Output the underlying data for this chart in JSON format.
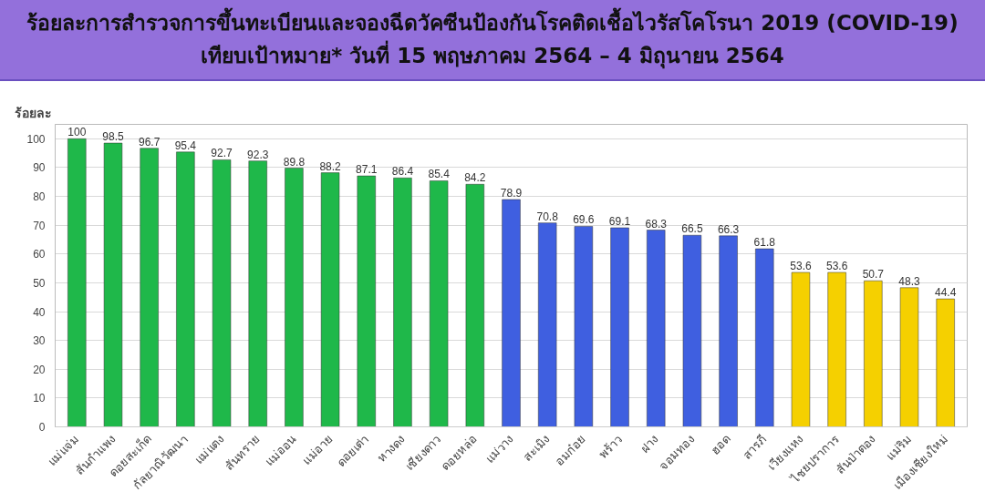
{
  "chart_data": {
    "type": "bar",
    "title": "ร้อยละการสำรวจการขึ้นทะเบียนและจองฉีดวัคซีนป้องกันโรคติดเชื้อไวรัสโคโรนา 2019 (COVID-19) เทียบเป้าหมาย* วันที่ 15 พฤษภาคม 2564 – 4 มิถุนายน 2564",
    "ylabel": "ร้อยละ",
    "categories": [
      "แม่แจ่ม",
      "สันกำแพง",
      "ดอยสะเก็ด",
      "กัลยาณิวัฒนา",
      "แม่แตง",
      "สันทราย",
      "แม่ออน",
      "แม่อาย",
      "ดอยเต่า",
      "หางดง",
      "เชียงดาว",
      "ดอยหล่อ",
      "แม่วาง",
      "สะเมิง",
      "อมก๋อย",
      "พร้าว",
      "ฝาง",
      "จอมทอง",
      "ฮอด",
      "สารภี",
      "เวียงแหง",
      "ไชยปราการ",
      "สันป่าตอง",
      "แม่ริม",
      "เมืองเชียงใหม่"
    ],
    "values": [
      100,
      98.5,
      96.7,
      95.4,
      92.7,
      92.3,
      89.8,
      88.2,
      87.1,
      86.4,
      85.4,
      84.2,
      78.9,
      70.8,
      69.6,
      69.1,
      68.3,
      66.5,
      66.3,
      61.8,
      53.6,
      53.6,
      50.7,
      48.3,
      44.4
    ],
    "colors": [
      "#1fb84a",
      "#1fb84a",
      "#1fb84a",
      "#1fb84a",
      "#1fb84a",
      "#1fb84a",
      "#1fb84a",
      "#1fb84a",
      "#1fb84a",
      "#1fb84a",
      "#1fb84a",
      "#1fb84a",
      "#3f5fe0",
      "#3f5fe0",
      "#3f5fe0",
      "#3f5fe0",
      "#3f5fe0",
      "#3f5fe0",
      "#3f5fe0",
      "#3f5fe0",
      "#f5d000",
      "#f5d000",
      "#f5d000",
      "#f5d000",
      "#f5d000"
    ],
    "ylim": [
      0,
      105
    ],
    "yticks": [
      0,
      10,
      20,
      30,
      40,
      50,
      60,
      70,
      80,
      90,
      100
    ],
    "grid": "y",
    "data_labels": true
  }
}
